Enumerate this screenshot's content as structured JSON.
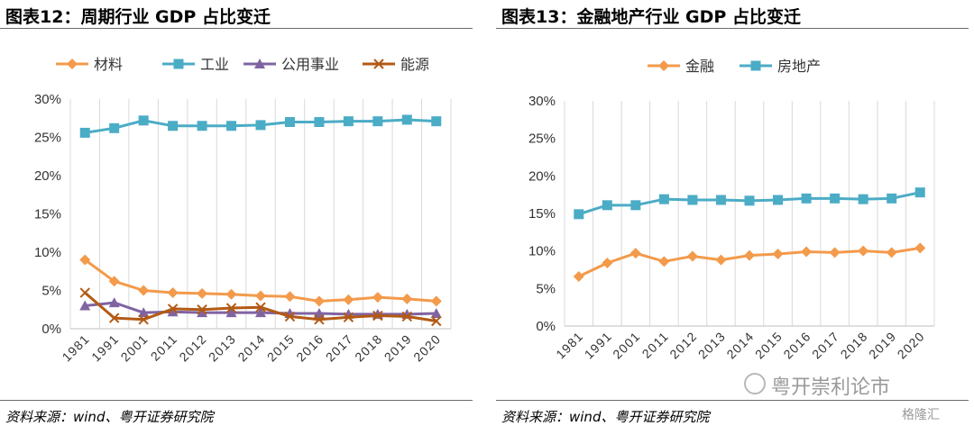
{
  "charts": [
    {
      "panel_title": "图表12：周期行业 GDP 占比变迁",
      "source": "资料来源：wind、粤开证券研究院"
    },
    {
      "panel_title": "图表13：金融地产行业 GDP 占比变迁",
      "source": "资料来源：wind、粤开证券研究院"
    }
  ],
  "watermark": {
    "text": "粤开崇利论市",
    "icon": "wechat-circle-icon"
  },
  "brand": {
    "text": "格隆汇",
    "icon": "brand-logo-icon"
  },
  "chart_data": [
    {
      "type": "line",
      "title": "",
      "categories": [
        "1981",
        "1991",
        "2001",
        "2011",
        "2012",
        "2013",
        "2014",
        "2015",
        "2016",
        "2017",
        "2018",
        "2019",
        "2020"
      ],
      "ylim": [
        0,
        0.3
      ],
      "yticks": [
        "0%",
        "5%",
        "10%",
        "15%",
        "20%",
        "25%",
        "30%"
      ],
      "grid": "vertical",
      "legend": "top",
      "series": [
        {
          "name": "材料",
          "color": "#F39A4B",
          "marker": "diamond",
          "values": [
            0.09,
            0.062,
            0.05,
            0.047,
            0.046,
            0.045,
            0.043,
            0.042,
            0.036,
            0.038,
            0.041,
            0.039,
            0.036
          ]
        },
        {
          "name": "工业",
          "color": "#4BACC6",
          "marker": "square",
          "values": [
            0.256,
            0.262,
            0.272,
            0.265,
            0.265,
            0.265,
            0.266,
            0.27,
            0.27,
            0.271,
            0.271,
            0.273,
            0.271
          ]
        },
        {
          "name": "公用事业",
          "color": "#8064A2",
          "marker": "triangle",
          "values": [
            0.03,
            0.034,
            0.021,
            0.022,
            0.021,
            0.021,
            0.021,
            0.02,
            0.02,
            0.019,
            0.019,
            0.019,
            0.02
          ]
        },
        {
          "name": "能源",
          "color": "#B35A14",
          "marker": "x",
          "values": [
            0.047,
            0.014,
            0.012,
            0.026,
            0.025,
            0.027,
            0.028,
            0.016,
            0.012,
            0.015,
            0.017,
            0.016,
            0.01
          ]
        }
      ]
    },
    {
      "type": "line",
      "title": "",
      "categories": [
        "1981",
        "1991",
        "2001",
        "2011",
        "2012",
        "2013",
        "2014",
        "2015",
        "2016",
        "2017",
        "2018",
        "2019",
        "2020"
      ],
      "ylim": [
        0,
        0.3
      ],
      "yticks": [
        "0%",
        "5%",
        "10%",
        "15%",
        "20%",
        "25%",
        "30%"
      ],
      "grid": "vertical",
      "legend": "top",
      "series": [
        {
          "name": "金融",
          "color": "#F39A4B",
          "marker": "diamond",
          "values": [
            0.066,
            0.084,
            0.097,
            0.086,
            0.093,
            0.088,
            0.094,
            0.096,
            0.099,
            0.098,
            0.1,
            0.098,
            0.104
          ]
        },
        {
          "name": "房地产",
          "color": "#4BACC6",
          "marker": "square",
          "values": [
            0.149,
            0.161,
            0.161,
            0.169,
            0.168,
            0.168,
            0.167,
            0.168,
            0.17,
            0.17,
            0.169,
            0.17,
            0.178
          ]
        }
      ]
    }
  ]
}
